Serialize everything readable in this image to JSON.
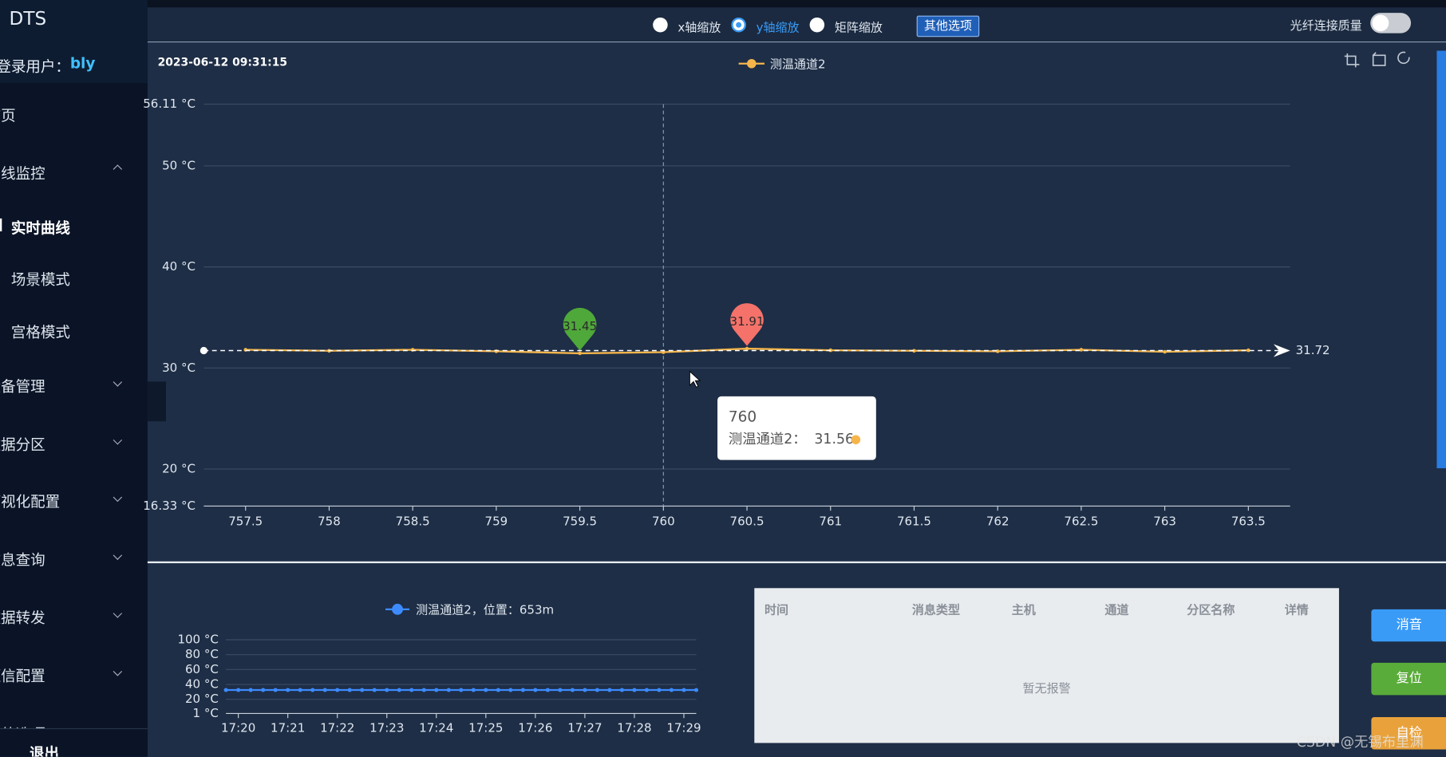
{
  "sidebar": {
    "brand": "DTS",
    "user_label": "登录用户：",
    "user": "bly",
    "menu": [
      {
        "label": "首页",
        "level": 1
      },
      {
        "label": "在线监控",
        "level": 1,
        "arrow": "up"
      },
      {
        "label": "实时曲线",
        "level": 2,
        "active": true
      },
      {
        "label": "场景模式",
        "level": 2
      },
      {
        "label": "宫格模式",
        "level": 2
      },
      {
        "label": "设备管理",
        "level": 1,
        "arrow": "down"
      },
      {
        "label": "数据分区",
        "level": 1,
        "arrow": "down"
      },
      {
        "label": "可视化配置",
        "level": 1,
        "arrow": "down"
      },
      {
        "label": "信息查询",
        "level": 1,
        "arrow": "down"
      },
      {
        "label": "数据转发",
        "level": 1,
        "arrow": "down"
      },
      {
        "label": "短信配置",
        "level": 1,
        "arrow": "down"
      },
      {
        "label": "其他选项",
        "level": 1,
        "arrow": "down"
      }
    ],
    "logout": "退出"
  },
  "toolbar": {
    "options": [
      "x轴缩放",
      "y轴缩放",
      "矩阵缩放"
    ],
    "selected": 1,
    "more": "其他选项",
    "fiber_quality": "光纤连接质量",
    "fiber_on": false
  },
  "chart_data": [
    {
      "type": "line",
      "timestamp": "2023-06-12 09:31:15",
      "x": [
        757.5,
        758,
        758.5,
        759,
        759.5,
        760,
        760.5,
        761,
        761.5,
        762,
        762.5,
        763,
        763.5
      ],
      "xlim": [
        757.25,
        763.75
      ],
      "xticks": [
        757.5,
        758,
        758.5,
        759,
        759.5,
        760,
        760.5,
        761,
        761.5,
        762,
        762.5,
        763,
        763.5
      ],
      "ylim": [
        16.33,
        56.11
      ],
      "yticks": [
        {
          "value": 56.11,
          "label": "56.11 °C"
        },
        {
          "value": 50,
          "label": "50 °C"
        },
        {
          "value": 40,
          "label": "40 °C"
        },
        {
          "value": 30,
          "label": "30 °C"
        },
        {
          "value": 20,
          "label": "20 °C"
        },
        {
          "value": 16.33,
          "label": "16.33 °C"
        }
      ],
      "grid": true,
      "series": [
        {
          "name": "测温通道2",
          "color": "#f5b54a",
          "values": [
            31.8,
            31.7,
            31.8,
            31.65,
            31.45,
            31.56,
            31.91,
            31.75,
            31.7,
            31.65,
            31.8,
            31.6,
            31.75
          ]
        }
      ],
      "max_color": "#f4726a",
      "min_color": "#4fa83a",
      "mark_line": 31.72,
      "tooltip": {
        "index": 5,
        "label": "测温通道2："
      }
    },
    {
      "type": "line",
      "categories": [
        null,
        "17:20",
        null,
        null,
        null,
        "17:21",
        null,
        null,
        null,
        "17:22",
        null,
        null,
        null,
        "17:23",
        null,
        null,
        null,
        "17:24",
        null,
        null,
        null,
        "17:25",
        null,
        null,
        null,
        "17:26",
        null,
        null,
        null,
        "17:27",
        null,
        null,
        null,
        "17:28",
        null,
        null,
        null,
        "17:29",
        null
      ],
      "ylim": [
        1,
        100
      ],
      "yticks": [
        {
          "value": 100,
          "label": "100 °C"
        },
        {
          "value": 80,
          "label": "80 °C"
        },
        {
          "value": 60,
          "label": "60 °C"
        },
        {
          "value": 40,
          "label": "40 °C"
        },
        {
          "value": 20,
          "label": "20 °C"
        },
        {
          "value": 1,
          "label": "1 °C"
        }
      ],
      "grid": true,
      "series": [
        {
          "name": "测温通道2，位置：653m",
          "color": "#3d8bff",
          "values": [
            32.5,
            32.5,
            32.5,
            32.5,
            32.5,
            32.5,
            32.5,
            32.5,
            32.5,
            32.5,
            32.5,
            32.5,
            32.5,
            32.5,
            32.5,
            32.5,
            32.5,
            32.5,
            32.5,
            32.5,
            32.5,
            32.5,
            32.5,
            32.5,
            32.5,
            32.5,
            32.5,
            32.5,
            32.5,
            32.5,
            32.5,
            32.5,
            32.5,
            32.5,
            32.5,
            32.5,
            32.5,
            32.5,
            32.5
          ]
        }
      ]
    }
  ],
  "alarm_table": {
    "columns": [
      "时间",
      "消息类型",
      "主机",
      "通道",
      "分区名称",
      "详情"
    ],
    "empty": "暂无报警"
  },
  "buttons": [
    {
      "label": "消音",
      "color": "#3a9bf7"
    },
    {
      "label": "复位",
      "color": "#5aac3a"
    },
    {
      "label": "自检",
      "color": "#e9a23b"
    }
  ],
  "watermark": "CSDN @无锡布里渊"
}
